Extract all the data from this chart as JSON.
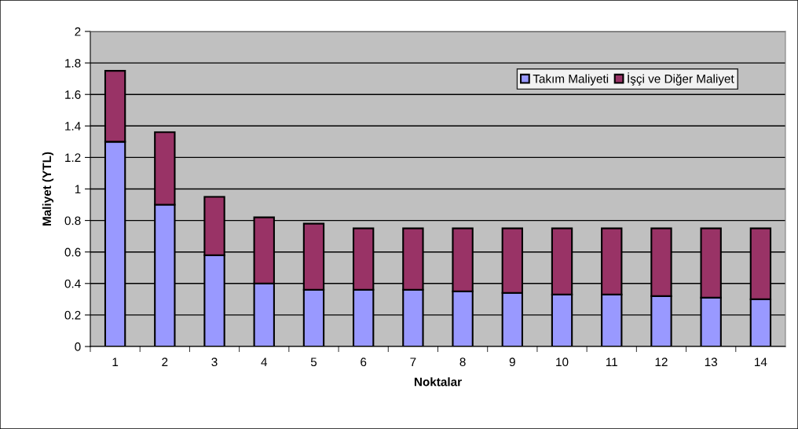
{
  "chart_data": {
    "type": "bar",
    "stacked": true,
    "xlabel": "Noktalar",
    "ylabel": "Maliyet (YTL)",
    "categories": [
      "1",
      "2",
      "3",
      "4",
      "5",
      "6",
      "7",
      "8",
      "9",
      "10",
      "11",
      "12",
      "13",
      "14"
    ],
    "series": [
      {
        "name": "Takım Maliyeti",
        "color": "#9999ff",
        "values": [
          1.3,
          0.9,
          0.58,
          0.4,
          0.36,
          0.36,
          0.36,
          0.35,
          0.34,
          0.33,
          0.33,
          0.32,
          0.31,
          0.3
        ]
      },
      {
        "name": "İşçi ve Diğer Maliyet",
        "color": "#993366",
        "values": [
          0.45,
          0.46,
          0.37,
          0.42,
          0.42,
          0.39,
          0.39,
          0.4,
          0.41,
          0.42,
          0.42,
          0.43,
          0.44,
          0.45
        ]
      }
    ],
    "ylim": [
      0,
      2
    ],
    "yticks": [
      0,
      {
        "value": 0.2,
        "label": "0.2"
      },
      {
        "value": 0.4,
        "label": "0.4"
      },
      {
        "value": 0.6,
        "label": "0.6"
      },
      {
        "value": 0.8,
        "label": "0.8"
      },
      1,
      {
        "value": 1.2,
        "label": "1.2"
      },
      {
        "value": 1.4,
        "label": "1.4"
      },
      {
        "value": 1.6,
        "label": "1.6"
      },
      {
        "value": 1.8,
        "label": "1.8"
      },
      2
    ],
    "grid": "y",
    "legend": "top right"
  }
}
